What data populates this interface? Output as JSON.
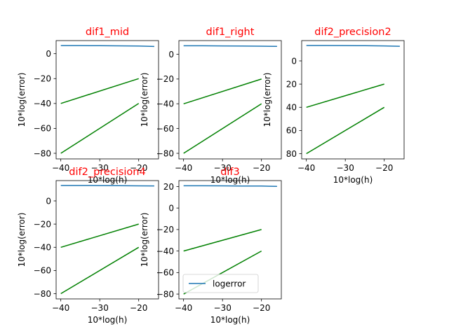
{
  "figure": {
    "background": "#ffffff"
  },
  "chart_data": [
    {
      "type": "line",
      "title": "dif1_mid",
      "title_color": "#ff0000",
      "xlabel": "10*log(h)",
      "ylabel": "10*log(error)",
      "xlim": [
        -41.2,
        -14.9
      ],
      "ylim": [
        -84.5,
        10.5
      ],
      "xticks": [
        -40,
        -30,
        -20
      ],
      "yticks": [
        0,
        -20,
        -40,
        -60,
        -80
      ],
      "grid": false,
      "series": [
        {
          "name": "logerror",
          "color": "#1f77b4",
          "x": [
            -40,
            -35,
            -30,
            -25,
            -20,
            -16
          ],
          "y": [
            6.5,
            6.5,
            6.4,
            6.3,
            6.1,
            5.8
          ]
        },
        {
          "color": "#008000",
          "x": [
            -40,
            -20
          ],
          "y": [
            -40,
            -20
          ]
        },
        {
          "color": "#008000",
          "x": [
            -40,
            -20
          ],
          "y": [
            -80,
            -40
          ]
        }
      ]
    },
    {
      "type": "line",
      "title": "dif1_right",
      "title_color": "#ff0000",
      "xlabel": "10*log(h)",
      "ylabel": "10*log(error)",
      "xlim": [
        -41.2,
        -14.9
      ],
      "ylim": [
        -84.5,
        11.0
      ],
      "xticks": [
        -40,
        -30,
        -20
      ],
      "yticks": [
        0,
        -20,
        -40,
        -60,
        -80
      ],
      "grid": false,
      "series": [
        {
          "name": "logerror",
          "color": "#1f77b4",
          "x": [
            -40,
            -35,
            -30,
            -25,
            -20,
            -16
          ],
          "y": [
            6.8,
            6.8,
            6.7,
            6.6,
            6.5,
            6.3
          ]
        },
        {
          "color": "#008000",
          "x": [
            -40,
            -20
          ],
          "y": [
            -40,
            -20
          ]
        },
        {
          "color": "#008000",
          "x": [
            -40,
            -20
          ],
          "y": [
            -80,
            -40
          ]
        }
      ]
    },
    {
      "type": "line",
      "title": "dif2_precision2",
      "title_color": "#ff0000",
      "xlabel": "10*log(h)",
      "ylabel": "10*log(error)",
      "xlim": [
        -41.2,
        -14.9
      ],
      "ylim": [
        -84.5,
        17.5
      ],
      "xticks": [
        -40,
        -30,
        -20
      ],
      "yticks": [
        0,
        20,
        40,
        60,
        80
      ],
      "ytick_labels": [
        "0",
        "20",
        "40",
        "60",
        "80"
      ],
      "ytick_values": [
        0,
        -20,
        -40,
        -60,
        -80
      ],
      "grid": false,
      "series": [
        {
          "name": "logerror",
          "color": "#1f77b4",
          "x": [
            -40,
            -35,
            -30,
            -25,
            -20,
            -16
          ],
          "y": [
            13.3,
            13.3,
            13.2,
            13.1,
            12.9,
            12.6
          ]
        },
        {
          "color": "#008000",
          "x": [
            -40,
            -20
          ],
          "y": [
            -40,
            -20
          ]
        },
        {
          "color": "#008000",
          "x": [
            -40,
            -20
          ],
          "y": [
            -80,
            -40
          ]
        }
      ]
    },
    {
      "type": "line",
      "title": "dif2_precision4",
      "title_color": "#ff0000",
      "xlabel": "10*log(h)",
      "ylabel": "10*log(error)",
      "xlim": [
        -41.2,
        -14.9
      ],
      "ylim": [
        -84.5,
        17.5
      ],
      "xticks": [
        -40,
        -30,
        -20
      ],
      "yticks": [
        0,
        -20,
        -40,
        -60,
        -80
      ],
      "grid": false,
      "series": [
        {
          "name": "logerror",
          "color": "#1f77b4",
          "x": [
            -40,
            -35,
            -30,
            -25,
            -20,
            -16
          ],
          "y": [
            13.3,
            13.3,
            13.2,
            13.1,
            13.0,
            12.9
          ]
        },
        {
          "color": "#008000",
          "x": [
            -40,
            -20
          ],
          "y": [
            -40,
            -20
          ]
        },
        {
          "color": "#008000",
          "x": [
            -40,
            -20
          ],
          "y": [
            -80,
            -40
          ]
        }
      ]
    },
    {
      "type": "line",
      "title": "dif3",
      "title_color": "#ff0000",
      "xlabel": "10*log(h)",
      "ylabel": "10*log(error)",
      "xlim": [
        -41.2,
        -14.9
      ],
      "ylim": [
        -84.5,
        25.5
      ],
      "xticks": [
        -40,
        -30,
        -20
      ],
      "yticks": [
        20,
        0,
        -20,
        -40,
        -60,
        -80
      ],
      "grid": false,
      "legend": {
        "entries": [
          "logerror"
        ],
        "placement": "lower-left"
      },
      "series": [
        {
          "name": "logerror",
          "color": "#1f77b4",
          "x": [
            -40,
            -35,
            -30,
            -25,
            -20,
            -16
          ],
          "y": [
            20.7,
            20.7,
            20.6,
            20.5,
            20.4,
            20.1
          ]
        },
        {
          "color": "#008000",
          "x": [
            -40,
            -20
          ],
          "y": [
            -40,
            -20
          ]
        },
        {
          "color": "#008000",
          "x": [
            -40,
            -20
          ],
          "y": [
            -80,
            -40
          ]
        }
      ]
    }
  ]
}
